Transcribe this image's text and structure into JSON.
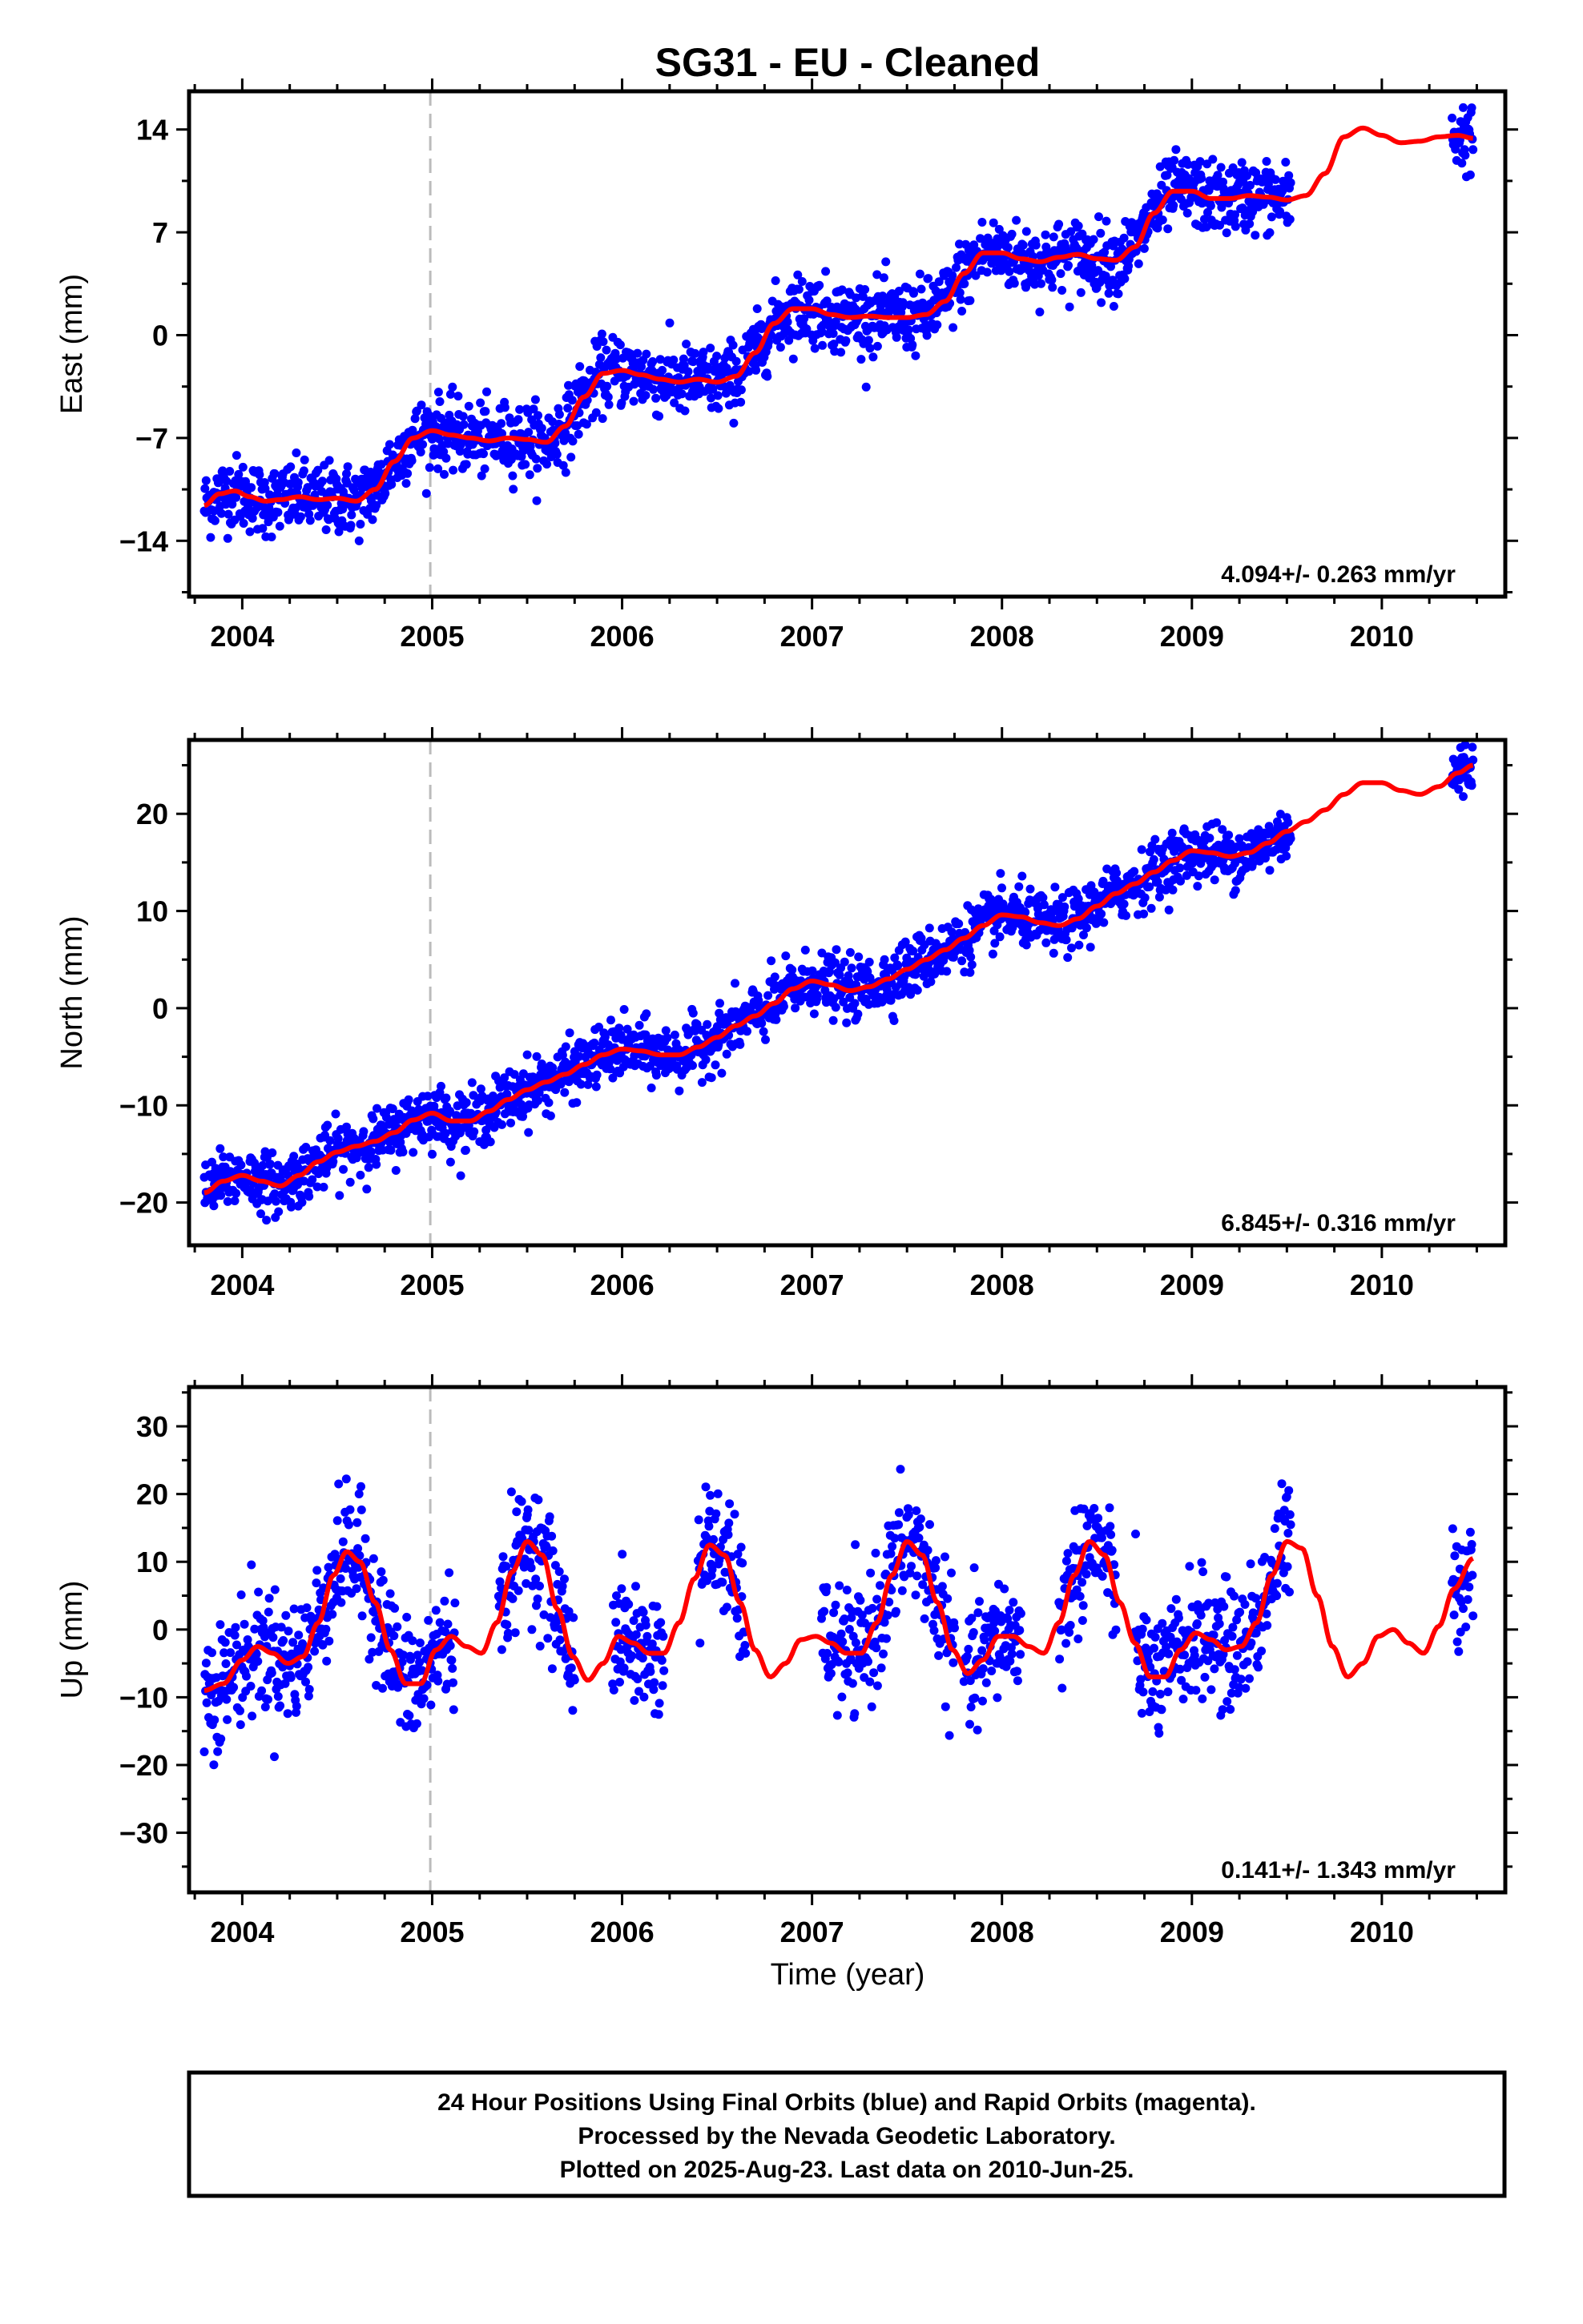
{
  "title": "SG31  - EU - Cleaned",
  "xlabel": "Time (year)",
  "footer": {
    "line1": "24 Hour Positions Using Final Orbits (blue) and Rapid Orbits (magenta).",
    "line2": "Processed by the Nevada Geodetic Laboratory.",
    "line3": "Plotted on 2025-Aug-23. Last data on 2010-Jun-25."
  },
  "colors": {
    "points": "#0000ff",
    "model": "#ff0000",
    "break_line": "#bbbbbb"
  },
  "chart_data": [
    {
      "type": "scatter",
      "component": "east",
      "ylabel": "East (mm)",
      "rate_text": "4.094+/- 0.263 mm/yr",
      "xlim": [
        2003.72,
        2010.65
      ],
      "ylim": [
        -17.8,
        16.6
      ],
      "yticks": [
        -14,
        -7,
        0,
        7,
        14
      ],
      "xticks": [
        2004,
        2005,
        2006,
        2007,
        2008,
        2009,
        2010
      ],
      "break_x": 2004.99,
      "data_segments": [
        [
          2003.8,
          2005.0
        ],
        [
          2005.0,
          2009.52
        ],
        [
          2010.37,
          2010.48
        ]
      ],
      "series": [
        {
          "x": [
            2003.8,
            2003.88,
            2003.96,
            2004.04,
            2004.12,
            2004.2,
            2004.3,
            2004.4,
            2004.5,
            2004.6,
            2004.7,
            2004.8,
            2004.9,
            2005.0,
            2005.1,
            2005.2,
            2005.3,
            2005.4,
            2005.5,
            2005.6,
            2005.7,
            2005.8,
            2005.9,
            2006.0,
            2006.1,
            2006.2,
            2006.3,
            2006.4,
            2006.5,
            2006.6,
            2006.7,
            2006.8,
            2006.9,
            2007.0,
            2007.1,
            2007.2,
            2007.3,
            2007.4,
            2007.5,
            2007.6,
            2007.7,
            2007.8,
            2007.9,
            2008.0,
            2008.1,
            2008.2,
            2008.3,
            2008.4,
            2008.5,
            2008.6,
            2008.7,
            2008.8,
            2008.9,
            2009.0,
            2009.1,
            2009.2,
            2009.3,
            2009.4,
            2009.5,
            2009.6,
            2009.7,
            2009.8,
            2009.9,
            2010.0,
            2010.1,
            2010.2,
            2010.3,
            2010.4,
            2010.48
          ],
          "y": [
            -11.6,
            -10.8,
            -10.6,
            -11.0,
            -11.3,
            -11.2,
            -11.0,
            -11.2,
            -11.1,
            -11.3,
            -10.5,
            -8.6,
            -7.0,
            -6.5,
            -6.8,
            -7.0,
            -7.2,
            -7.0,
            -7.1,
            -7.3,
            -6.2,
            -4.2,
            -2.6,
            -2.4,
            -2.7,
            -3.0,
            -3.2,
            -3.0,
            -3.2,
            -2.8,
            -1.2,
            0.8,
            1.8,
            1.8,
            1.4,
            1.2,
            1.3,
            1.2,
            1.2,
            1.4,
            2.3,
            4.2,
            5.6,
            5.6,
            5.2,
            5.0,
            5.3,
            5.5,
            5.2,
            5.1,
            6.0,
            8.3,
            9.8,
            9.8,
            9.3,
            9.3,
            9.5,
            9.4,
            9.2,
            9.5,
            11.0,
            13.5,
            14.1,
            13.6,
            13.1,
            13.2,
            13.5,
            13.6,
            13.4
          ],
          "scatter": 1.2
        }
      ]
    },
    {
      "type": "scatter",
      "component": "north",
      "ylabel": "North (mm)",
      "rate_text": "6.845+/- 0.316 mm/yr",
      "xlim": [
        2003.72,
        2010.65
      ],
      "ylim": [
        -24.4,
        27.6
      ],
      "yticks": [
        -20,
        -10,
        0,
        10,
        20
      ],
      "xticks": [
        2004,
        2005,
        2006,
        2007,
        2008,
        2009,
        2010
      ],
      "break_x": 2004.99,
      "data_segments": [
        [
          2003.8,
          2005.0
        ],
        [
          2005.0,
          2009.52
        ],
        [
          2010.37,
          2010.48
        ]
      ],
      "series": [
        {
          "x": [
            2003.8,
            2003.9,
            2004.0,
            2004.1,
            2004.2,
            2004.3,
            2004.4,
            2004.5,
            2004.6,
            2004.7,
            2004.8,
            2004.9,
            2005.0,
            2005.1,
            2005.2,
            2005.3,
            2005.4,
            2005.5,
            2005.6,
            2005.7,
            2005.8,
            2005.9,
            2006.0,
            2006.1,
            2006.2,
            2006.3,
            2006.4,
            2006.5,
            2006.6,
            2006.7,
            2006.8,
            2006.9,
            2007.0,
            2007.1,
            2007.2,
            2007.3,
            2007.4,
            2007.5,
            2007.6,
            2007.7,
            2007.8,
            2007.9,
            2008.0,
            2008.1,
            2008.2,
            2008.3,
            2008.4,
            2008.5,
            2008.6,
            2008.7,
            2008.8,
            2008.9,
            2009.0,
            2009.1,
            2009.2,
            2009.3,
            2009.4,
            2009.5,
            2009.6,
            2009.7,
            2009.8,
            2009.9,
            2010.0,
            2010.1,
            2010.2,
            2010.3,
            2010.4,
            2010.48
          ],
          "y": [
            -19.0,
            -17.8,
            -17.2,
            -17.8,
            -18.3,
            -17.2,
            -15.8,
            -14.8,
            -14.2,
            -13.7,
            -12.8,
            -11.5,
            -10.8,
            -11.6,
            -11.6,
            -10.6,
            -9.4,
            -8.4,
            -7.6,
            -6.8,
            -5.8,
            -4.8,
            -4.2,
            -4.4,
            -4.8,
            -4.8,
            -4.0,
            -3.0,
            -1.8,
            -0.8,
            0.5,
            2.0,
            2.8,
            2.4,
            1.8,
            2.2,
            3.0,
            4.0,
            5.0,
            6.0,
            7.2,
            8.5,
            9.6,
            9.4,
            8.8,
            8.5,
            9.2,
            10.5,
            11.8,
            12.8,
            14.0,
            15.2,
            16.2,
            16.0,
            15.6,
            16.0,
            17.0,
            18.2,
            19.2,
            20.4,
            22.0,
            23.2,
            23.2,
            22.4,
            22.0,
            22.8,
            24.2,
            25.0
          ],
          "scatter": 1.5
        }
      ]
    },
    {
      "type": "scatter",
      "component": "up",
      "ylabel": "Up (mm)",
      "rate_text": "0.141+/- 1.343 mm/yr",
      "xlim": [
        2003.72,
        2010.65
      ],
      "ylim": [
        -38.8,
        35.8
      ],
      "yticks": [
        -30,
        -20,
        -10,
        0,
        10,
        20,
        30
      ],
      "xticks": [
        2004,
        2005,
        2006,
        2007,
        2008,
        2009,
        2010
      ],
      "break_x": 2004.99,
      "data_segments": [
        [
          2003.8,
          2004.3
        ],
        [
          2004.3,
          2005.0
        ],
        [
          2005.0,
          2005.12
        ],
        [
          2005.35,
          2005.75
        ],
        [
          2005.95,
          2006.22
        ],
        [
          2006.4,
          2006.65
        ],
        [
          2007.05,
          2007.75
        ],
        [
          2007.8,
          2008.1
        ],
        [
          2008.3,
          2008.6
        ],
        [
          2008.7,
          2009.52
        ],
        [
          2010.37,
          2010.48
        ]
      ],
      "series": [
        {
          "x": [
            2003.8,
            2003.9,
            2004.0,
            2004.08,
            2004.16,
            2004.24,
            2004.32,
            2004.4,
            2004.48,
            2004.55,
            2004.62,
            2004.7,
            2004.78,
            2004.86,
            2004.94,
            2005.02,
            2005.1,
            2005.18,
            2005.26,
            2005.34,
            2005.42,
            2005.5,
            2005.58,
            2005.66,
            2005.74,
            2005.82,
            2005.9,
            2005.98,
            2006.06,
            2006.14,
            2006.22,
            2006.3,
            2006.38,
            2006.46,
            2006.54,
            2006.62,
            2006.7,
            2006.78,
            2006.86,
            2006.94,
            2007.02,
            2007.1,
            2007.18,
            2007.26,
            2007.34,
            2007.42,
            2007.5,
            2007.58,
            2007.66,
            2007.74,
            2007.82,
            2007.9,
            2007.98,
            2008.06,
            2008.14,
            2008.22,
            2008.3,
            2008.38,
            2008.46,
            2008.54,
            2008.62,
            2008.7,
            2008.78,
            2008.86,
            2008.94,
            2009.02,
            2009.1,
            2009.18,
            2009.26,
            2009.34,
            2009.42,
            2009.5,
            2009.58,
            2009.66,
            2009.74,
            2009.82,
            2009.9,
            2009.98,
            2010.06,
            2010.14,
            2010.22,
            2010.3,
            2010.38,
            2010.48
          ],
          "y": [
            -9.0,
            -8.0,
            -4.5,
            -2.5,
            -3.5,
            -5.0,
            -4.0,
            1.0,
            8.0,
            11.5,
            10.0,
            4.0,
            -3.0,
            -8.0,
            -8.0,
            -3.0,
            -1.0,
            -2.5,
            -3.5,
            1.0,
            8.5,
            13.0,
            11.0,
            3.0,
            -4.0,
            -7.5,
            -5.0,
            -1.0,
            -2.0,
            -3.5,
            -3.5,
            1.0,
            7.5,
            12.5,
            11.0,
            4.0,
            -3.0,
            -7.0,
            -5.0,
            -1.5,
            -1.0,
            -2.0,
            -3.5,
            -3.5,
            1.0,
            8.0,
            13.0,
            11.0,
            4.0,
            -3.0,
            -6.5,
            -4.5,
            -1.0,
            -1.0,
            -2.5,
            -3.5,
            1.0,
            8.0,
            13.0,
            11.0,
            4.0,
            -2.0,
            -7.0,
            -7.0,
            -3.0,
            -0.5,
            -1.5,
            -3.0,
            -2.5,
            1.0,
            8.0,
            13.0,
            12.0,
            5.0,
            -2.5,
            -7.0,
            -5.0,
            -1.0,
            0.0,
            -2.0,
            -3.5,
            0.5,
            6.0,
            10.5
          ],
          "scatter": 4.5
        }
      ]
    }
  ]
}
